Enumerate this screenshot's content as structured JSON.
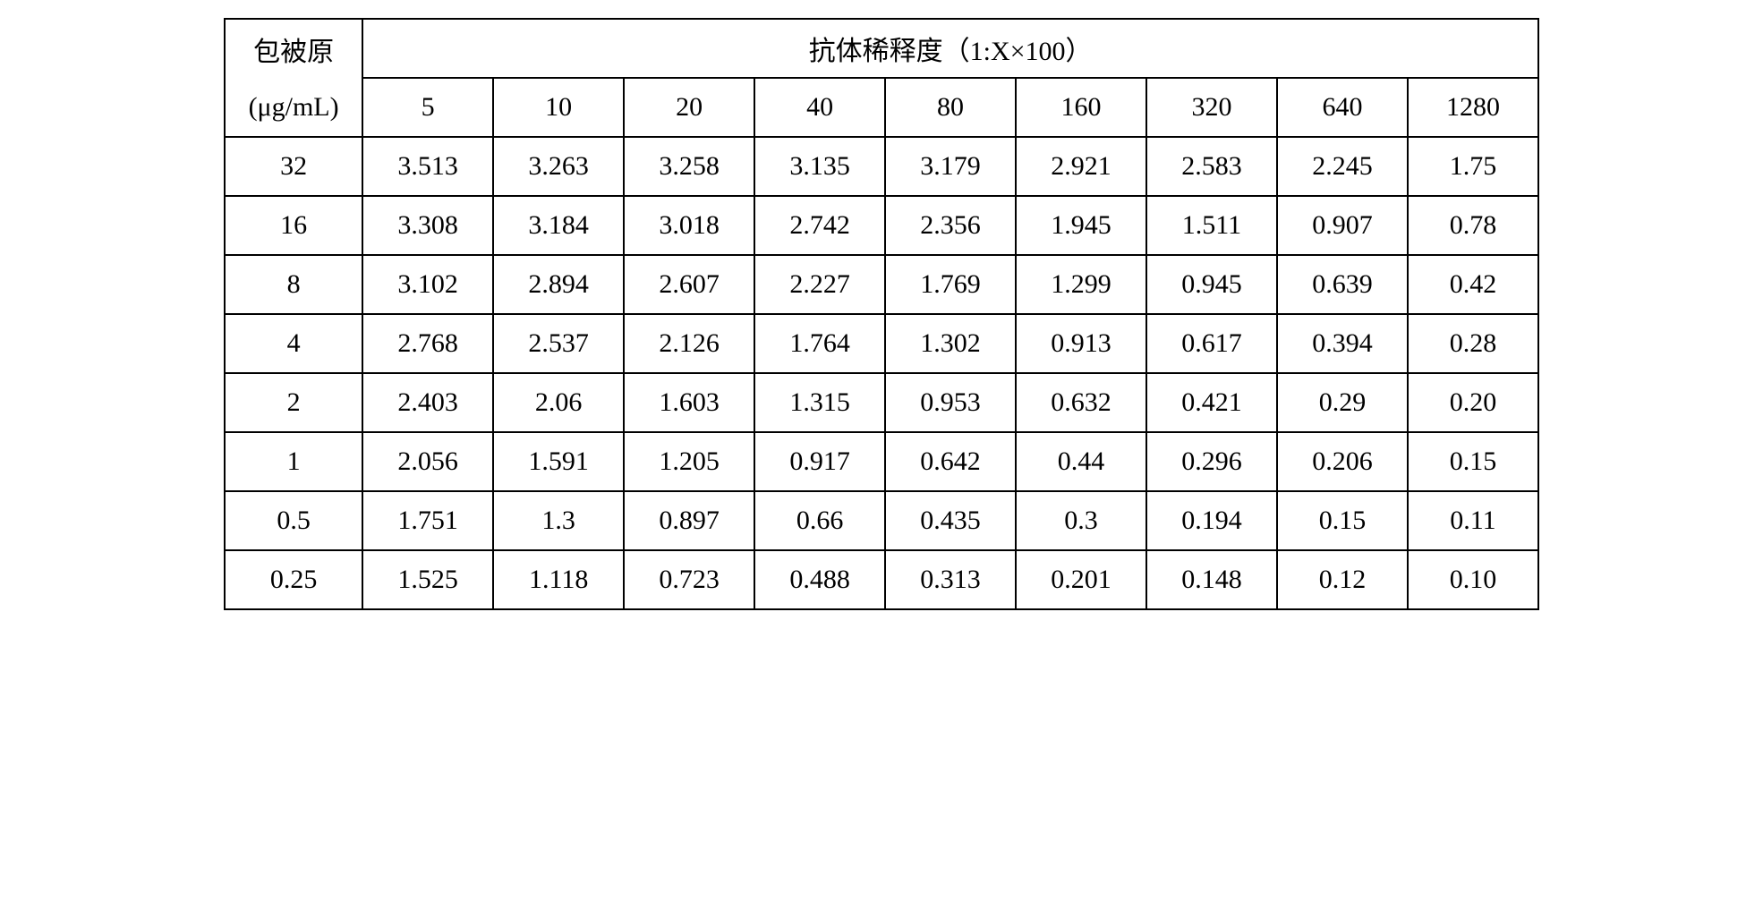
{
  "table": {
    "type": "table",
    "row_header_label_line1": "包被原",
    "row_header_label_line2": "(μg/mL)",
    "span_header_label": "抗体稀释度（1:X×100）",
    "column_headers": [
      "5",
      "10",
      "20",
      "40",
      "80",
      "160",
      "320",
      "640",
      "1280"
    ],
    "row_labels": [
      "32",
      "16",
      "8",
      "4",
      "2",
      "1",
      "0.5",
      "0.25"
    ],
    "rows": [
      [
        "3.513",
        "3.263",
        "3.258",
        "3.135",
        "3.179",
        "2.921",
        "2.583",
        "2.245",
        "1.75"
      ],
      [
        "3.308",
        "3.184",
        "3.018",
        "2.742",
        "2.356",
        "1.945",
        "1.511",
        "0.907",
        "0.78"
      ],
      [
        "3.102",
        "2.894",
        "2.607",
        "2.227",
        "1.769",
        "1.299",
        "0.945",
        "0.639",
        "0.42"
      ],
      [
        "2.768",
        "2.537",
        "2.126",
        "1.764",
        "1.302",
        "0.913",
        "0.617",
        "0.394",
        "0.28"
      ],
      [
        "2.403",
        "2.06",
        "1.603",
        "1.315",
        "0.953",
        "0.632",
        "0.421",
        "0.29",
        "0.20"
      ],
      [
        "2.056",
        "1.591",
        "1.205",
        "0.917",
        "0.642",
        "0.44",
        "0.296",
        "0.206",
        "0.15"
      ],
      [
        "1.751",
        "1.3",
        "0.897",
        "0.66",
        "0.435",
        "0.3",
        "0.194",
        "0.15",
        "0.11"
      ],
      [
        "1.525",
        "1.118",
        "0.723",
        "0.488",
        "0.313",
        "0.201",
        "0.148",
        "0.12",
        "0.10"
      ]
    ],
    "border_color": "#000000",
    "background_color": "#ffffff",
    "text_color": "#000000",
    "font_size": 30,
    "border_width": 2,
    "column_align": "center"
  }
}
